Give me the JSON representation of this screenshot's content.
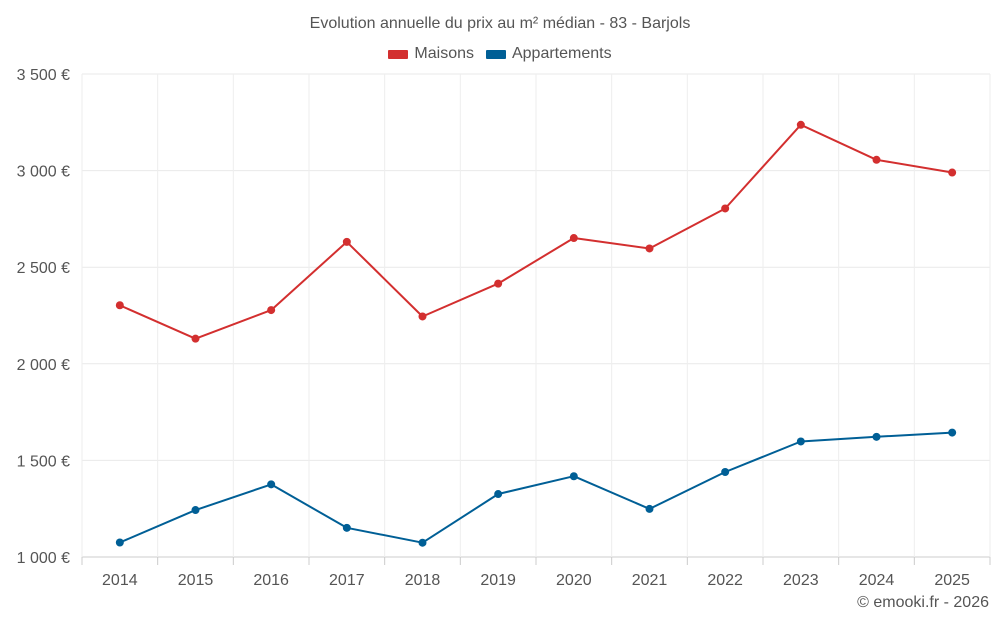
{
  "chart_data": {
    "type": "line",
    "title": "Evolution annuelle du prix au m² médian - 83 - Barjols",
    "xlabel": "",
    "ylabel": "",
    "categories": [
      "2014",
      "2015",
      "2016",
      "2017",
      "2018",
      "2019",
      "2020",
      "2021",
      "2022",
      "2023",
      "2024",
      "2025"
    ],
    "ylim": [
      1000,
      3500
    ],
    "yticks": [
      1000,
      1500,
      2000,
      2500,
      3000,
      3500
    ],
    "ytick_labels": [
      "1 000 €",
      "1 500 €",
      "2 000 €",
      "2 500 €",
      "3 000 €",
      "3 500 €"
    ],
    "grid": true,
    "legend_position": "top-center",
    "series": [
      {
        "name": "Maisons",
        "color": "#d32f2f",
        "values": [
          2303,
          2130,
          2278,
          2631,
          2245,
          2415,
          2651,
          2597,
          2804,
          3237,
          3056,
          2990
        ]
      },
      {
        "name": "Appartements",
        "color": "#005f96",
        "values": [
          1075,
          1243,
          1376,
          1151,
          1074,
          1326,
          1418,
          1249,
          1440,
          1598,
          1622,
          1644
        ]
      }
    ]
  },
  "credit": "© emooki.fr - 2026"
}
